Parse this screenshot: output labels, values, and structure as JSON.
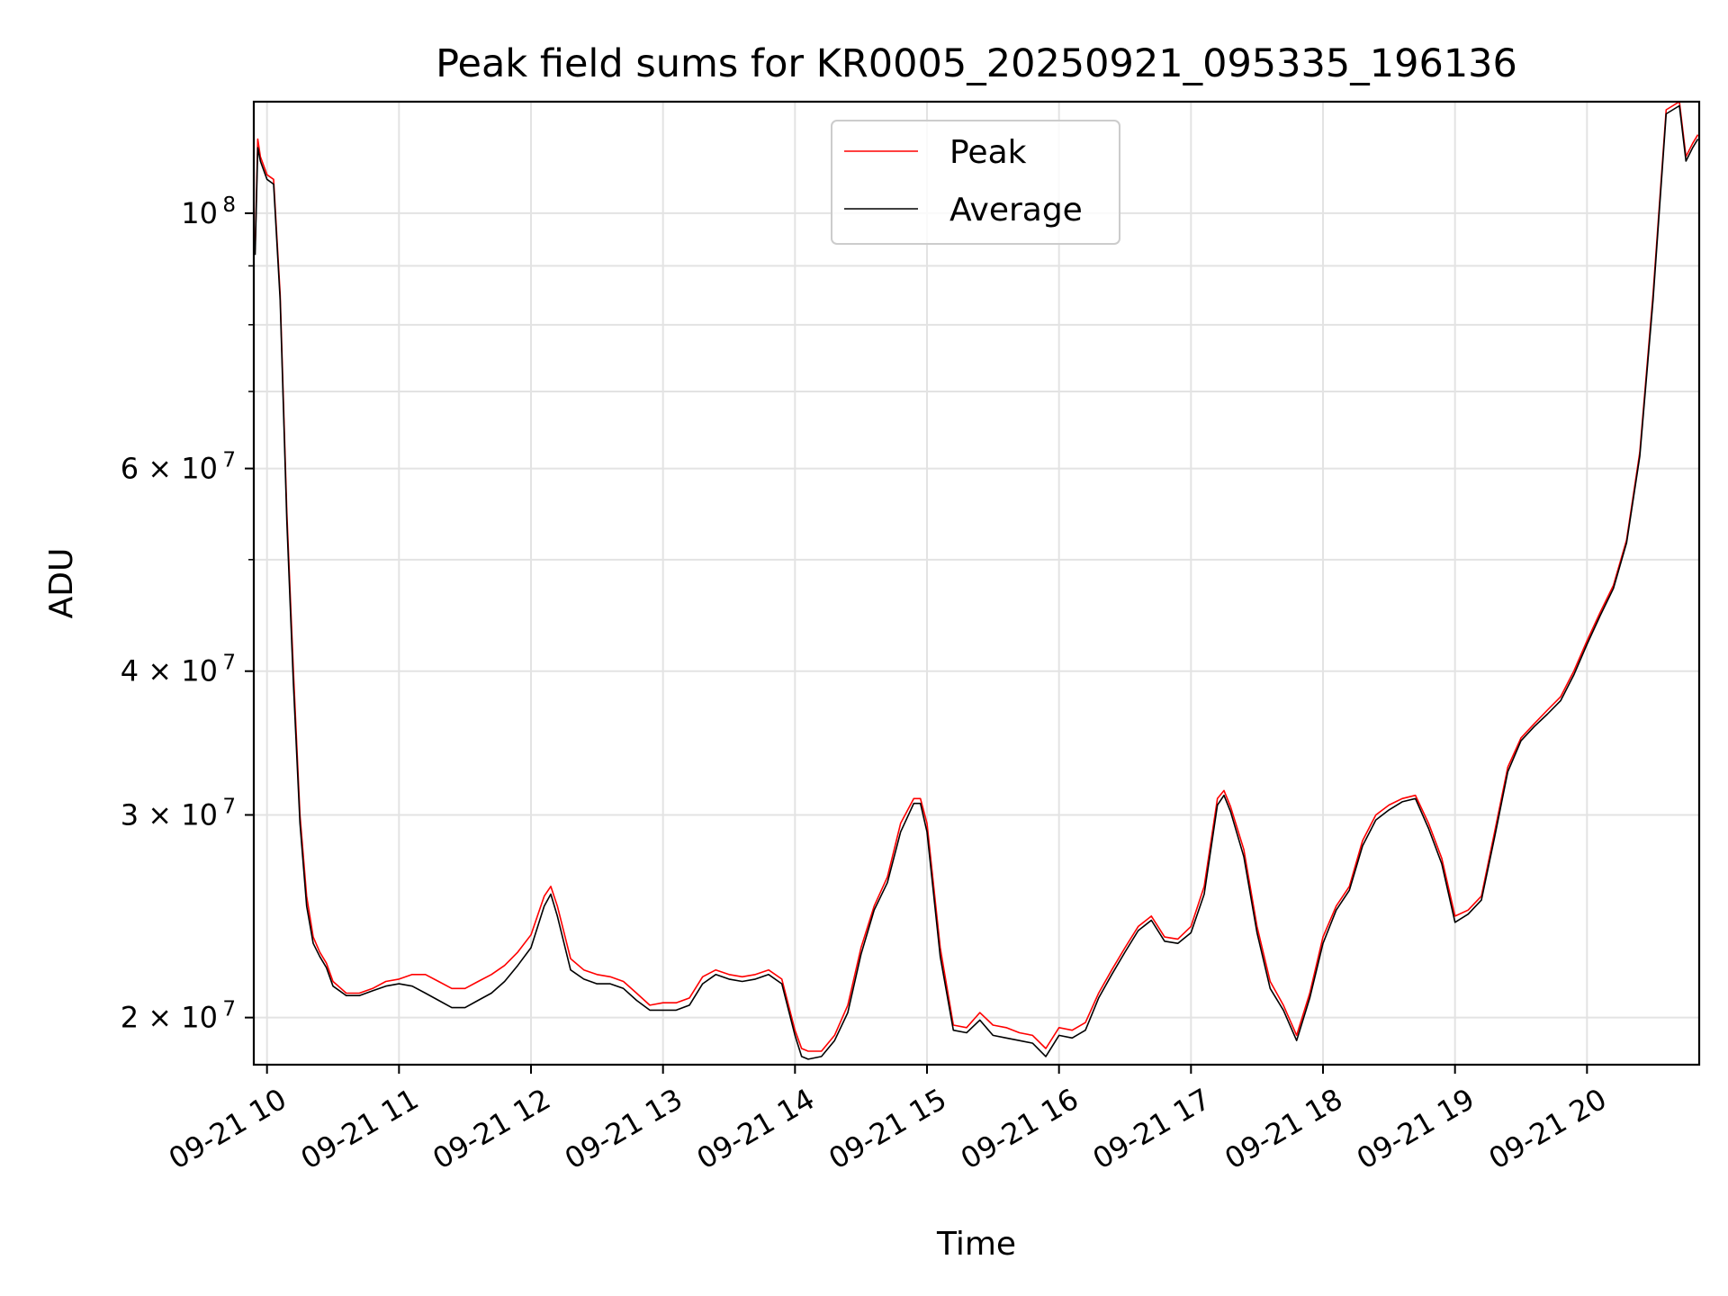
{
  "chart_data": {
    "type": "line",
    "title": "Peak field sums for KR0005_20250921_095335_196136",
    "xlabel": "Time",
    "ylabel": "ADU",
    "yscale": "log",
    "xlim": [
      9.9,
      20.85
    ],
    "ylim": [
      18200000,
      125000000
    ],
    "grid": true,
    "legend_position": "top-center",
    "x_ticks": [
      {
        "value": 10,
        "label": "09-21 10"
      },
      {
        "value": 11,
        "label": "09-21 11"
      },
      {
        "value": 12,
        "label": "09-21 12"
      },
      {
        "value": 13,
        "label": "09-21 13"
      },
      {
        "value": 14,
        "label": "09-21 14"
      },
      {
        "value": 15,
        "label": "09-21 15"
      },
      {
        "value": 16,
        "label": "09-21 16"
      },
      {
        "value": 17,
        "label": "09-21 17"
      },
      {
        "value": 18,
        "label": "09-21 18"
      },
      {
        "value": 19,
        "label": "09-21 19"
      },
      {
        "value": 20,
        "label": "09-21 20"
      }
    ],
    "y_ticks": [
      {
        "value": 20000000,
        "base": "2 × 10",
        "exp": "7"
      },
      {
        "value": 30000000,
        "base": "3 × 10",
        "exp": "7"
      },
      {
        "value": 40000000,
        "base": "4 × 10",
        "exp": "7"
      },
      {
        "value": 60000000,
        "base": "6 × 10",
        "exp": "7"
      },
      {
        "value": 100000000,
        "base": "10",
        "exp": "8"
      }
    ],
    "y_minor_ticks": [
      50000000,
      70000000,
      80000000,
      90000000
    ],
    "series": [
      {
        "name": "Peak",
        "color": "#ff0000",
        "x": [
          9.91,
          9.93,
          9.95,
          10.0,
          10.05,
          10.1,
          10.15,
          10.2,
          10.25,
          10.3,
          10.35,
          10.4,
          10.45,
          10.5,
          10.6,
          10.7,
          10.8,
          10.9,
          11.0,
          11.1,
          11.2,
          11.3,
          11.4,
          11.5,
          11.6,
          11.7,
          11.8,
          11.9,
          12.0,
          12.1,
          12.15,
          12.2,
          12.3,
          12.4,
          12.5,
          12.6,
          12.7,
          12.8,
          12.9,
          13.0,
          13.1,
          13.2,
          13.3,
          13.4,
          13.5,
          13.6,
          13.7,
          13.8,
          13.9,
          14.0,
          14.05,
          14.1,
          14.2,
          14.3,
          14.4,
          14.5,
          14.6,
          14.7,
          14.8,
          14.9,
          14.95,
          15.0,
          15.1,
          15.2,
          15.3,
          15.4,
          15.5,
          15.6,
          15.7,
          15.8,
          15.9,
          16.0,
          16.1,
          16.2,
          16.3,
          16.4,
          16.5,
          16.6,
          16.7,
          16.8,
          16.9,
          17.0,
          17.1,
          17.2,
          17.25,
          17.3,
          17.4,
          17.5,
          17.6,
          17.7,
          17.8,
          17.9,
          18.0,
          18.1,
          18.2,
          18.3,
          18.4,
          18.5,
          18.6,
          18.7,
          18.8,
          18.9,
          19.0,
          19.1,
          19.2,
          19.3,
          19.4,
          19.5,
          19.6,
          19.7,
          19.8,
          19.9,
          20.0,
          20.1,
          20.2,
          20.3,
          20.4,
          20.5,
          20.6,
          20.7,
          20.75,
          20.8,
          20.84
        ],
        "y": [
          93000000,
          116000000,
          112000000,
          108000000,
          107000000,
          85000000,
          55000000,
          40000000,
          30000000,
          25500000,
          23500000,
          22800000,
          22300000,
          21500000,
          21000000,
          21000000,
          21200000,
          21500000,
          21600000,
          21800000,
          21800000,
          21500000,
          21200000,
          21200000,
          21500000,
          21800000,
          22200000,
          22800000,
          23600000,
          25500000,
          26000000,
          25000000,
          22500000,
          22000000,
          21800000,
          21700000,
          21500000,
          21000000,
          20500000,
          20600000,
          20600000,
          20800000,
          21700000,
          22000000,
          21800000,
          21700000,
          21800000,
          22000000,
          21600000,
          19500000,
          18800000,
          18700000,
          18700000,
          19300000,
          20500000,
          23000000,
          25000000,
          26500000,
          29500000,
          31000000,
          31000000,
          29500000,
          23000000,
          19700000,
          19600000,
          20200000,
          19700000,
          19600000,
          19400000,
          19300000,
          18800000,
          19600000,
          19500000,
          19800000,
          21000000,
          22000000,
          23000000,
          24000000,
          24500000,
          23500000,
          23400000,
          24000000,
          26000000,
          31000000,
          31500000,
          30500000,
          28000000,
          24000000,
          21500000,
          20500000,
          19300000,
          21000000,
          23500000,
          25000000,
          26000000,
          28500000,
          30000000,
          30600000,
          31000000,
          31200000,
          29500000,
          27500000,
          24500000,
          24800000,
          25500000,
          29000000,
          33000000,
          35000000,
          36000000,
          37000000,
          38000000,
          40000000,
          42500000,
          45000000,
          47500000,
          52000000,
          62000000,
          85000000,
          123000000,
          125000000,
          112000000,
          115000000,
          117000000
        ]
      },
      {
        "name": "Average",
        "color": "#000000",
        "x": [
          9.91,
          9.93,
          9.95,
          10.0,
          10.05,
          10.1,
          10.15,
          10.2,
          10.25,
          10.3,
          10.35,
          10.4,
          10.45,
          10.5,
          10.6,
          10.7,
          10.8,
          10.9,
          11.0,
          11.1,
          11.2,
          11.3,
          11.4,
          11.5,
          11.6,
          11.7,
          11.8,
          11.9,
          12.0,
          12.1,
          12.15,
          12.2,
          12.3,
          12.4,
          12.5,
          12.6,
          12.7,
          12.8,
          12.9,
          13.0,
          13.1,
          13.2,
          13.3,
          13.4,
          13.5,
          13.6,
          13.7,
          13.8,
          13.9,
          14.0,
          14.05,
          14.1,
          14.2,
          14.3,
          14.4,
          14.5,
          14.6,
          14.7,
          14.8,
          14.9,
          14.95,
          15.0,
          15.1,
          15.2,
          15.3,
          15.4,
          15.5,
          15.6,
          15.7,
          15.8,
          15.9,
          16.0,
          16.1,
          16.2,
          16.3,
          16.4,
          16.5,
          16.6,
          16.7,
          16.8,
          16.9,
          17.0,
          17.1,
          17.2,
          17.25,
          17.3,
          17.4,
          17.5,
          17.6,
          17.7,
          17.8,
          17.9,
          18.0,
          18.1,
          18.2,
          18.3,
          18.4,
          18.5,
          18.6,
          18.7,
          18.8,
          18.9,
          19.0,
          19.1,
          19.2,
          19.3,
          19.4,
          19.5,
          19.6,
          19.7,
          19.8,
          19.9,
          20.0,
          20.1,
          20.2,
          20.3,
          20.4,
          20.5,
          20.6,
          20.7,
          20.75,
          20.8,
          20.84
        ],
        "y": [
          92000000,
          114000000,
          111000000,
          107000000,
          106000000,
          84000000,
          54000000,
          39000000,
          29500000,
          25000000,
          23200000,
          22600000,
          22100000,
          21300000,
          20900000,
          20900000,
          21100000,
          21300000,
          21400000,
          21300000,
          21000000,
          20700000,
          20400000,
          20400000,
          20700000,
          21000000,
          21500000,
          22200000,
          23000000,
          25000000,
          25600000,
          24500000,
          22000000,
          21600000,
          21400000,
          21400000,
          21200000,
          20700000,
          20300000,
          20300000,
          20300000,
          20500000,
          21400000,
          21800000,
          21600000,
          21500000,
          21600000,
          21800000,
          21400000,
          19300000,
          18500000,
          18400000,
          18500000,
          19100000,
          20200000,
          22700000,
          24800000,
          26200000,
          29000000,
          30700000,
          30700000,
          29000000,
          22600000,
          19500000,
          19400000,
          19900000,
          19300000,
          19200000,
          19100000,
          19000000,
          18500000,
          19300000,
          19200000,
          19500000,
          20800000,
          21800000,
          22800000,
          23800000,
          24300000,
          23300000,
          23200000,
          23700000,
          25600000,
          30600000,
          31200000,
          30200000,
          27600000,
          23700000,
          21200000,
          20300000,
          19100000,
          20800000,
          23200000,
          24800000,
          25800000,
          28200000,
          29700000,
          30300000,
          30800000,
          31000000,
          29200000,
          27200000,
          24200000,
          24600000,
          25300000,
          28700000,
          32700000,
          34800000,
          35800000,
          36700000,
          37700000,
          39700000,
          42200000,
          44700000,
          47200000,
          51700000,
          61500000,
          84000000,
          122000000,
          124000000,
          111000000,
          114000000,
          116000000
        ]
      }
    ]
  }
}
